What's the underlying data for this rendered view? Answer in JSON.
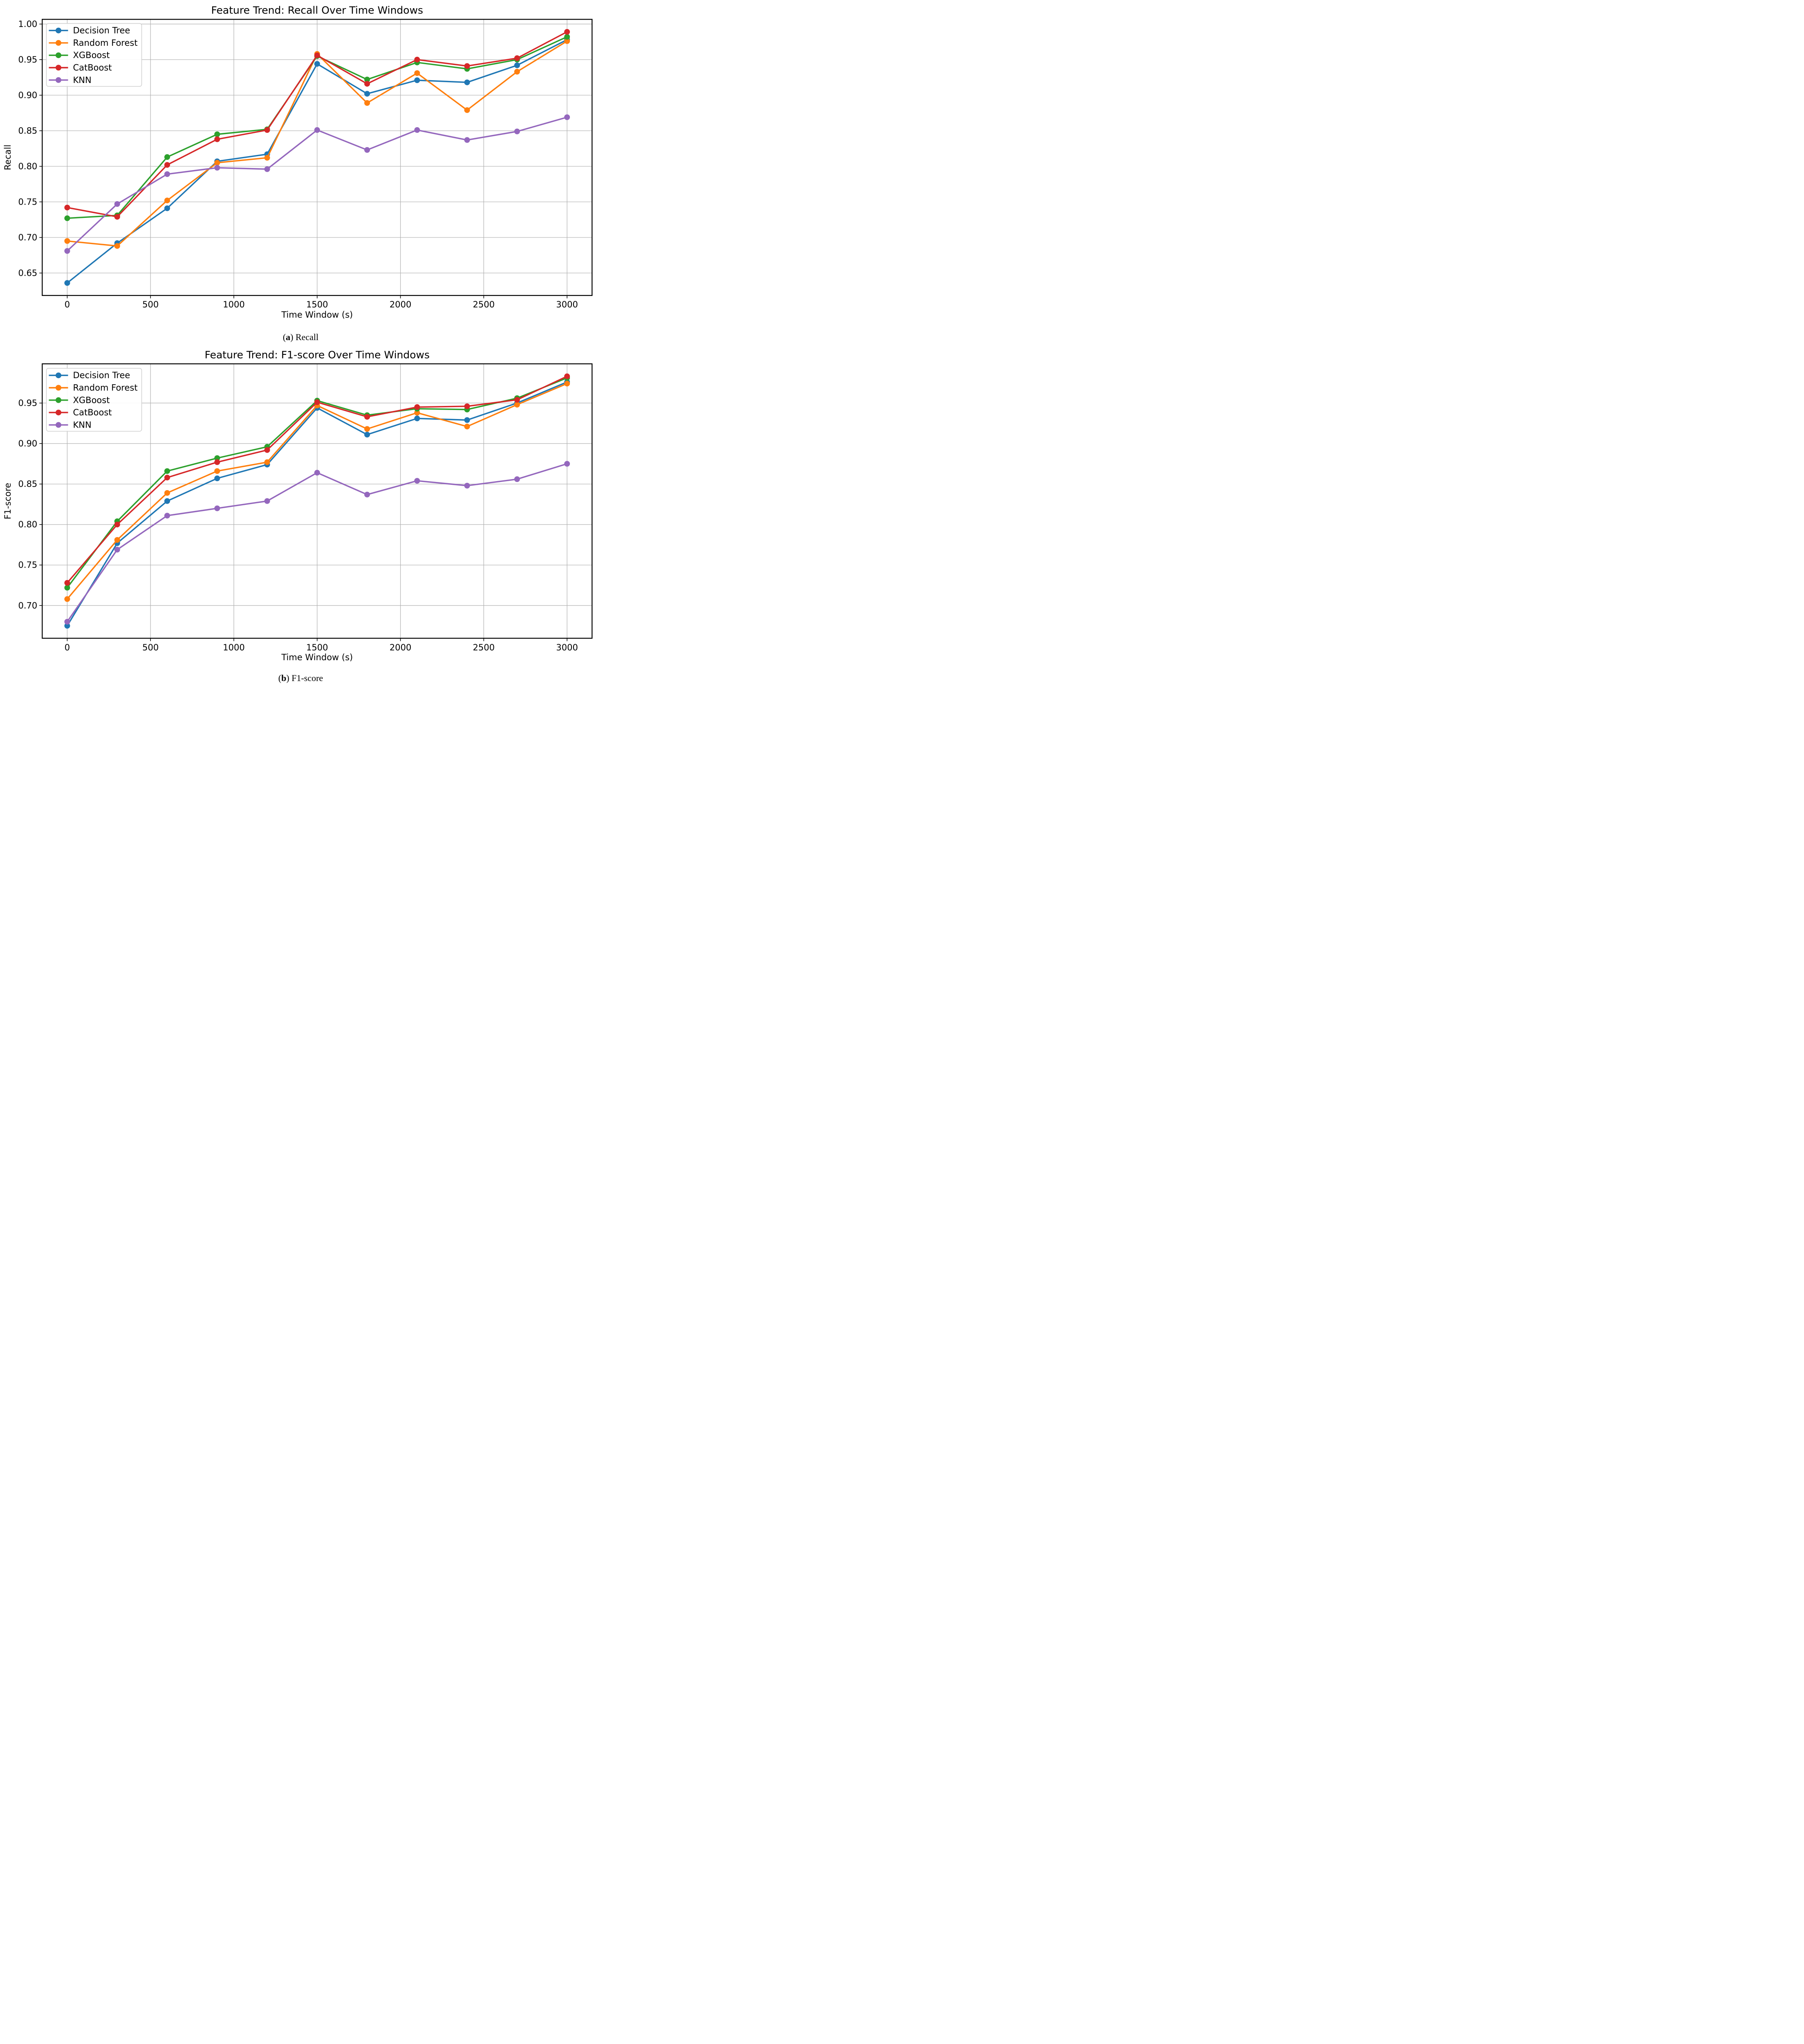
{
  "figure": {
    "background": "#ffffff",
    "grid_color": "#b0b0b0",
    "spine_color": "#000000",
    "legend_border_color": "#cccccc",
    "legend_background": "#ffffff"
  },
  "chart_data": [
    {
      "type": "line",
      "title": "Feature Trend: Recall Over Time Windows",
      "xlabel": "Time Window (s)",
      "ylabel": "Recall",
      "caption": {
        "prefix": "(",
        "letter": "a",
        "suffix": ") ",
        "label": "Recall"
      },
      "x": [
        0,
        300,
        600,
        900,
        1200,
        1500,
        1800,
        2100,
        2400,
        2700,
        3000
      ],
      "xlim": [
        -150,
        3150
      ],
      "ylim": [
        0.6184,
        1.0066
      ],
      "xtick_values": [
        0,
        500,
        1000,
        1500,
        2000,
        2500,
        3000
      ],
      "xtick_labels": [
        "0",
        "500",
        "1000",
        "1500",
        "2000",
        "2500",
        "3000"
      ],
      "ytick_values": [
        0.65,
        0.7,
        0.75,
        0.8,
        0.85,
        0.9,
        0.95,
        1.0
      ],
      "ytick_labels": [
        "0.65",
        "0.70",
        "0.75",
        "0.80",
        "0.85",
        "0.90",
        "0.95",
        "1.00"
      ],
      "grid": true,
      "legend_position": "upper left",
      "series": [
        {
          "name": "Decision Tree",
          "color": "#1f77b4",
          "values": [
            0.636,
            0.692,
            0.741,
            0.807,
            0.817,
            0.944,
            0.902,
            0.921,
            0.918,
            0.942,
            0.978
          ]
        },
        {
          "name": "Random Forest",
          "color": "#ff7f0e",
          "values": [
            0.695,
            0.688,
            0.752,
            0.805,
            0.812,
            0.958,
            0.889,
            0.931,
            0.879,
            0.933,
            0.976
          ]
        },
        {
          "name": "XGBoost",
          "color": "#2ca02c",
          "values": [
            0.727,
            0.731,
            0.813,
            0.845,
            0.852,
            0.955,
            0.922,
            0.946,
            0.937,
            0.95,
            0.982
          ]
        },
        {
          "name": "CatBoost",
          "color": "#d62728",
          "values": [
            0.742,
            0.729,
            0.802,
            0.838,
            0.851,
            0.956,
            0.916,
            0.95,
            0.941,
            0.952,
            0.989
          ]
        },
        {
          "name": "KNN",
          "color": "#9467bd",
          "values": [
            0.681,
            0.747,
            0.789,
            0.798,
            0.796,
            0.851,
            0.823,
            0.851,
            0.837,
            0.849,
            0.869
          ]
        }
      ]
    },
    {
      "type": "line",
      "title": "Feature Trend: F1-score Over Time Windows",
      "xlabel": "Time Window (s)",
      "ylabel": "F1-score",
      "caption": {
        "prefix": "(",
        "letter": "b",
        "suffix": ") ",
        "label": "F1-score"
      },
      "x": [
        0,
        300,
        600,
        900,
        1200,
        1500,
        1800,
        2100,
        2400,
        2700,
        3000
      ],
      "xlim": [
        -150,
        3150
      ],
      "ylim": [
        0.6596,
        0.9984
      ],
      "xtick_values": [
        0,
        500,
        1000,
        1500,
        2000,
        2500,
        3000
      ],
      "xtick_labels": [
        "0",
        "500",
        "1000",
        "1500",
        "2000",
        "2500",
        "3000"
      ],
      "ytick_values": [
        0.7,
        0.75,
        0.8,
        0.85,
        0.9,
        0.95
      ],
      "ytick_labels": [
        "0.70",
        "0.75",
        "0.80",
        "0.85",
        "0.90",
        "0.95"
      ],
      "grid": true,
      "legend_position": "upper left",
      "series": [
        {
          "name": "Decision Tree",
          "color": "#1f77b4",
          "values": [
            0.675,
            0.777,
            0.829,
            0.857,
            0.874,
            0.944,
            0.911,
            0.931,
            0.929,
            0.95,
            0.976
          ]
        },
        {
          "name": "Random Forest",
          "color": "#ff7f0e",
          "values": [
            0.708,
            0.781,
            0.839,
            0.866,
            0.877,
            0.947,
            0.918,
            0.938,
            0.921,
            0.948,
            0.974
          ]
        },
        {
          "name": "XGBoost",
          "color": "#2ca02c",
          "values": [
            0.722,
            0.804,
            0.866,
            0.882,
            0.896,
            0.953,
            0.935,
            0.943,
            0.942,
            0.956,
            0.981
          ]
        },
        {
          "name": "CatBoost",
          "color": "#d62728",
          "values": [
            0.728,
            0.8,
            0.858,
            0.877,
            0.892,
            0.951,
            0.933,
            0.945,
            0.946,
            0.954,
            0.983
          ]
        },
        {
          "name": "KNN",
          "color": "#9467bd",
          "values": [
            0.68,
            0.769,
            0.811,
            0.82,
            0.829,
            0.864,
            0.837,
            0.854,
            0.848,
            0.856,
            0.875
          ]
        }
      ]
    }
  ]
}
